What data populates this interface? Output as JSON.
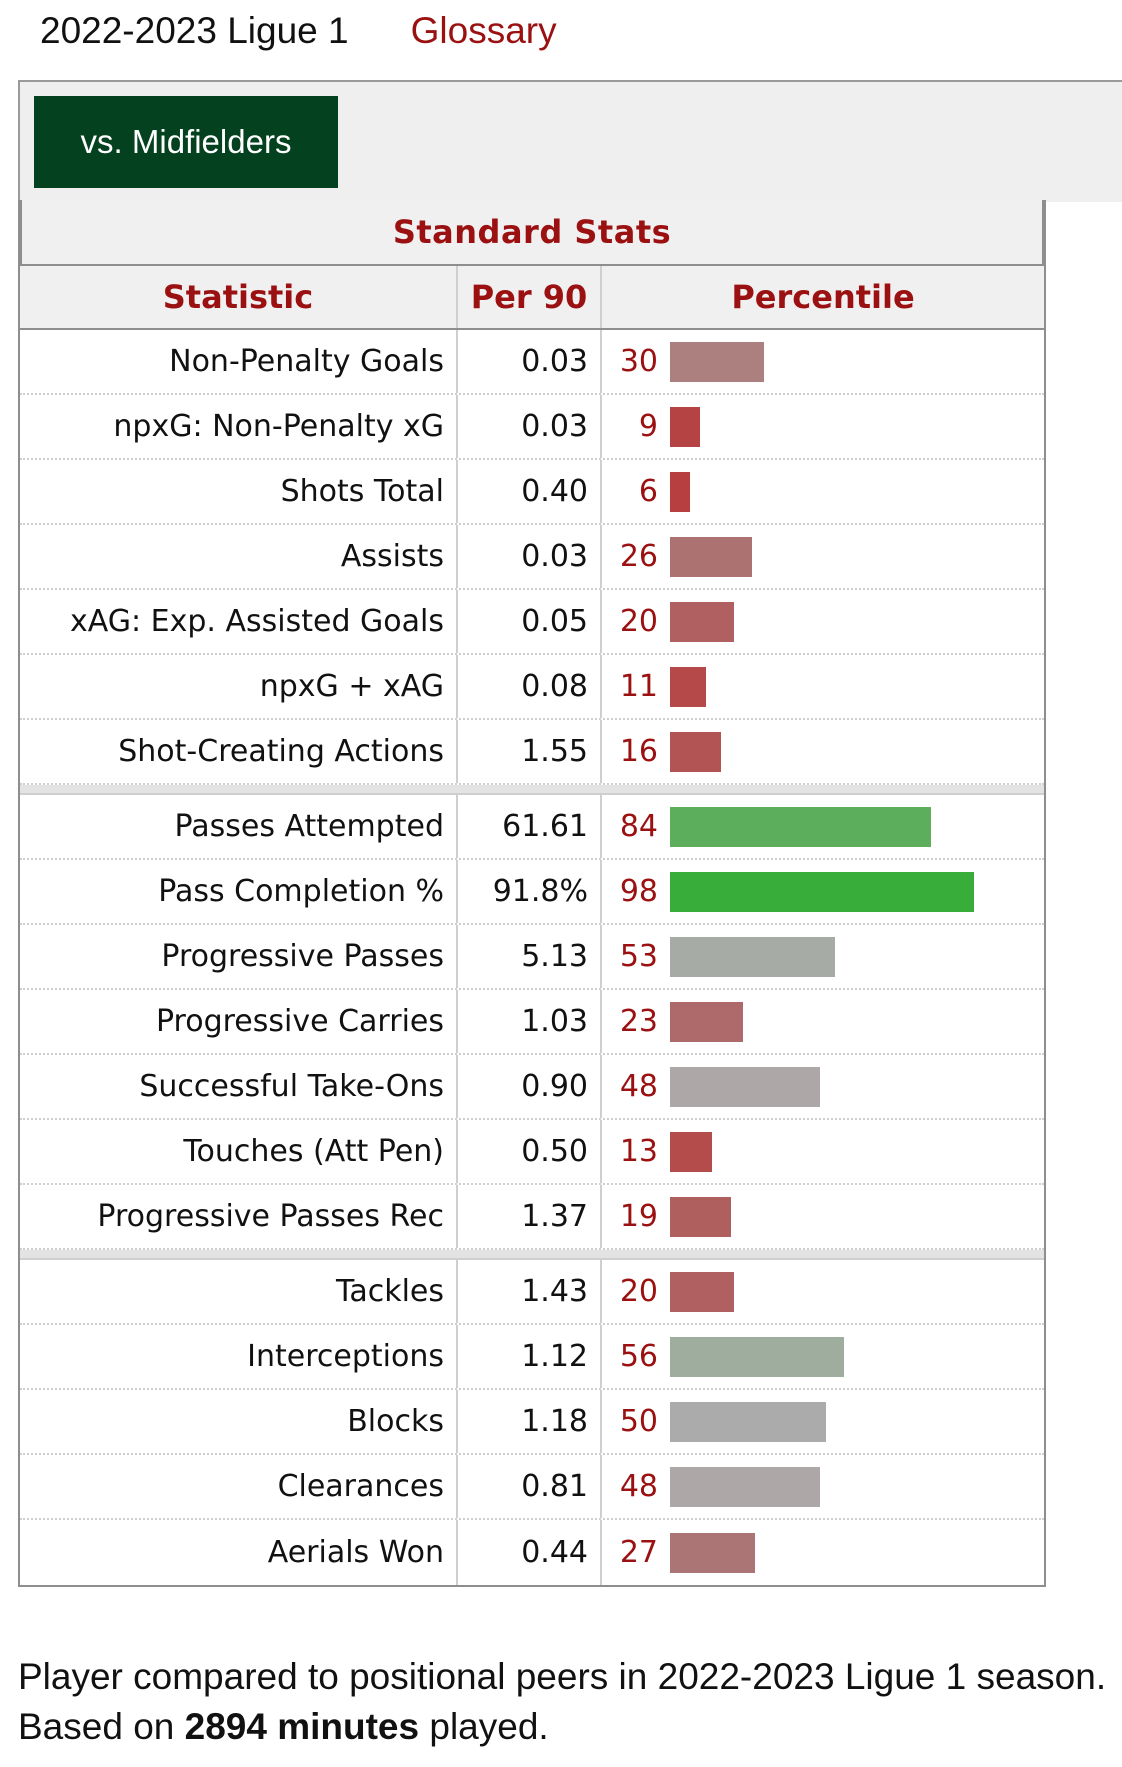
{
  "header": {
    "season": "2022-2023 Ligue 1",
    "glossary": "Glossary"
  },
  "toggle": {
    "label": "vs. Midfielders"
  },
  "table": {
    "caption": "Standard Stats",
    "columns": [
      "Statistic",
      "Per 90",
      "Percentile"
    ],
    "groups": [
      [
        {
          "stat": "Non-Penalty Goals",
          "per90": "0.03",
          "pct": "30",
          "color": "#ad8080"
        },
        {
          "stat": "npxG: Non-Penalty xG",
          "per90": "0.03",
          "pct": "9",
          "color": "#b64343"
        },
        {
          "stat": "Shots Total",
          "per90": "0.40",
          "pct": "6",
          "color": "#b83f3f"
        },
        {
          "stat": "Assists",
          "per90": "0.03",
          "pct": "26",
          "color": "#ac7272"
        },
        {
          "stat": "xAG: Exp. Assisted Goals",
          "per90": "0.05",
          "pct": "20",
          "color": "#b06060"
        },
        {
          "stat": "npxG + xAG",
          "per90": "0.08",
          "pct": "11",
          "color": "#b54848"
        },
        {
          "stat": "Shot-Creating Actions",
          "per90": "1.55",
          "pct": "16",
          "color": "#b25454"
        }
      ],
      [
        {
          "stat": "Passes Attempted",
          "per90": "61.61",
          "pct": "84",
          "color": "#5cad5c"
        },
        {
          "stat": "Pass Completion %",
          "per90": "91.8%",
          "pct": "98",
          "color": "#39ad39"
        },
        {
          "stat": "Progressive Passes",
          "per90": "5.13",
          "pct": "53",
          "color": "#a6aca5"
        },
        {
          "stat": "Progressive Carries",
          "per90": "1.03",
          "pct": "23",
          "color": "#ae6a6a"
        },
        {
          "stat": "Successful Take-Ons",
          "per90": "0.90",
          "pct": "48",
          "color": "#aea7a7"
        },
        {
          "stat": "Touches (Att Pen)",
          "per90": "0.50",
          "pct": "13",
          "color": "#b44c4c"
        },
        {
          "stat": "Progressive Passes Rec",
          "per90": "1.37",
          "pct": "19",
          "color": "#b05f5f"
        }
      ],
      [
        {
          "stat": "Tackles",
          "per90": "1.43",
          "pct": "20",
          "color": "#b06060"
        },
        {
          "stat": "Interceptions",
          "per90": "1.12",
          "pct": "56",
          "color": "#9ead9e"
        },
        {
          "stat": "Blocks",
          "per90": "1.18",
          "pct": "50",
          "color": "#ababab"
        },
        {
          "stat": "Clearances",
          "per90": "0.81",
          "pct": "48",
          "color": "#aea7a7"
        },
        {
          "stat": "Aerials Won",
          "per90": "0.44",
          "pct": "27",
          "color": "#ac7575"
        }
      ]
    ]
  },
  "footer": {
    "text_before": "Player compared to positional peers in 2022-2023 Ligue 1 season. Based on ",
    "minutes": "2894 minutes",
    "text_after": " played."
  }
}
